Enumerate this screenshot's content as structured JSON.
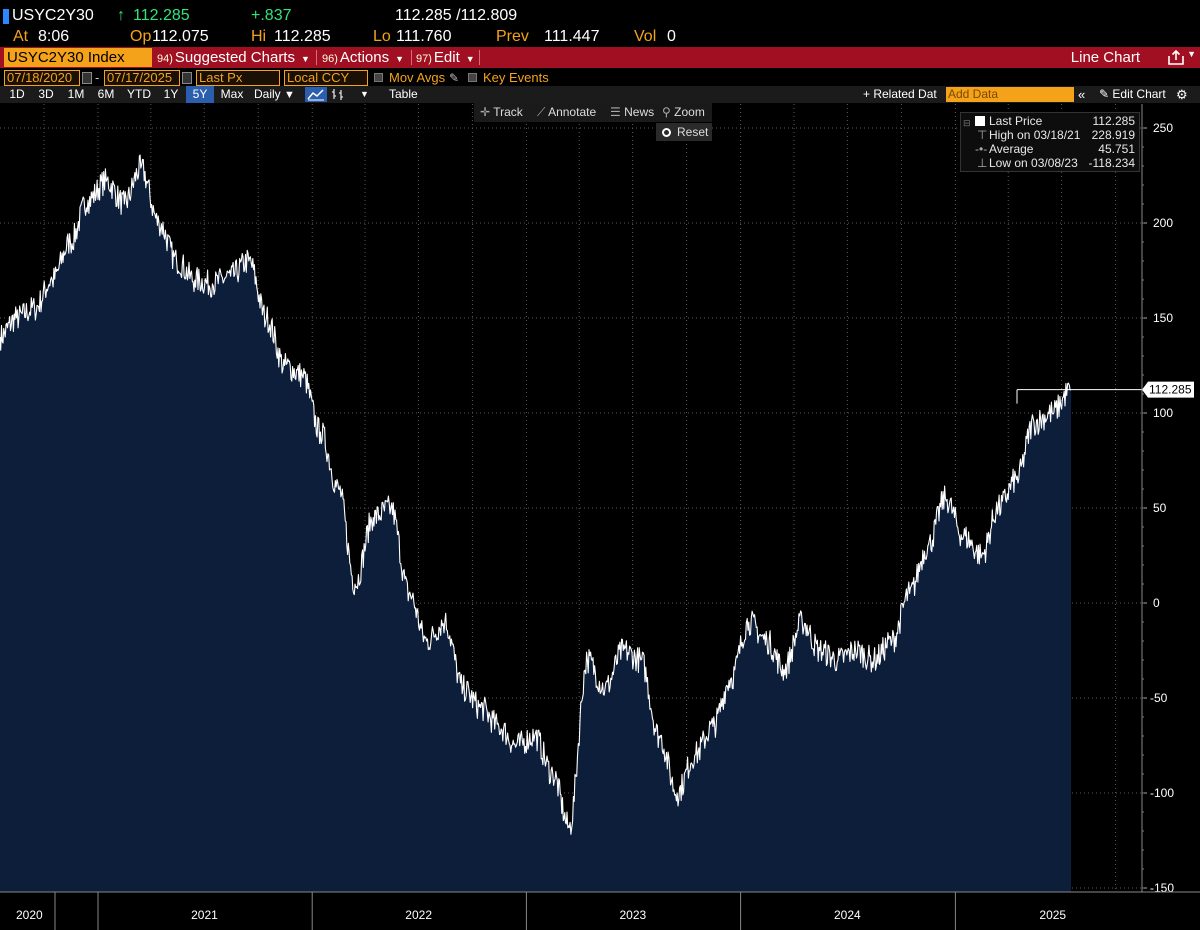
{
  "quote": {
    "ticker": "USYC2Y30",
    "arrow": "↑",
    "last": "112.285",
    "change": "+.837",
    "bid_ask": "112.285 /112.809",
    "at_label": "At",
    "at_time": "8:06",
    "op_label": "Op",
    "op_value": "112.075",
    "hi_label": "Hi",
    "hi_value": "112.285",
    "lo_label": "Lo",
    "lo_value": "111.760",
    "prev_label": "Prev",
    "prev_value": "111.447",
    "vol_label": "Vol",
    "vol_value": "0"
  },
  "menubar": {
    "security": "USYC2Y30 Index",
    "suggested_num": "94)",
    "suggested": "Suggested Charts",
    "actions_num": "96)",
    "actions": "Actions",
    "edit_num": "97)",
    "edit": "Edit",
    "line_chart": "Line Chart"
  },
  "settings": {
    "start_date": "07/18/2020",
    "dash": "-",
    "end_date": "07/17/2025",
    "field": "Last Px",
    "currency": "Local CCY",
    "mov_avgs": "Mov Avgs",
    "key_events": "Key Events"
  },
  "ranges": {
    "buttons": [
      "1D",
      "3D",
      "1M",
      "6M",
      "YTD",
      "1Y",
      "5Y",
      "Max"
    ],
    "active": "5Y",
    "frequency": "Daily",
    "table": "Table",
    "related": "+ Related Dat",
    "add_data_placeholder": "Add Data",
    "edit_chart": "Edit Chart"
  },
  "tools": {
    "track": "Track",
    "annotate": "Annotate",
    "news": "News",
    "zoom": "Zoom",
    "reset": "Reset"
  },
  "legend": {
    "last_label": "Last Price",
    "last_value": "112.285",
    "high_label": "High on 03/18/21",
    "high_value": "228.919",
    "avg_label": "Average",
    "avg_value": "45.751",
    "low_label": "Low on 03/08/23",
    "low_value": "-118.234"
  },
  "colors": {
    "area_fill": "#0c1e3a",
    "line": "#ffffff",
    "amber": "#f5a21b",
    "menu_red": "#a00f22",
    "up_green": "#2ee57a"
  },
  "chart_data": {
    "type": "area",
    "y_ticks": [
      250,
      200,
      150,
      100,
      50,
      0,
      -50,
      -100,
      -150
    ],
    "ylim": [
      -150,
      250
    ],
    "x_tick_labels": [
      "2020",
      "2021",
      "2022",
      "2023",
      "2024",
      "2025"
    ],
    "last_value_label": "112.285",
    "grid": true,
    "series": [
      {
        "values_by_month": [
          {
            "x": "2020-07",
            "y": 140
          },
          {
            "x": "2020-08",
            "y": 150
          },
          {
            "x": "2020-09",
            "y": 155
          },
          {
            "x": "2020-10",
            "y": 170
          },
          {
            "x": "2020-11",
            "y": 190
          },
          {
            "x": "2020-12",
            "y": 212
          },
          {
            "x": "2021-01",
            "y": 222
          },
          {
            "x": "2021-02",
            "y": 210
          },
          {
            "x": "2021-03",
            "y": 228.919
          },
          {
            "x": "2021-04",
            "y": 200
          },
          {
            "x": "2021-05",
            "y": 180
          },
          {
            "x": "2021-06",
            "y": 170
          },
          {
            "x": "2021-07",
            "y": 168
          },
          {
            "x": "2021-08",
            "y": 172
          },
          {
            "x": "2021-09",
            "y": 180
          },
          {
            "x": "2021-10",
            "y": 150
          },
          {
            "x": "2021-11",
            "y": 125
          },
          {
            "x": "2021-12",
            "y": 120
          },
          {
            "x": "2022-01",
            "y": 90
          },
          {
            "x": "2022-02",
            "y": 60
          },
          {
            "x": "2022-03",
            "y": 10
          },
          {
            "x": "2022-04",
            "y": 45
          },
          {
            "x": "2022-05",
            "y": 50
          },
          {
            "x": "2022-06",
            "y": 5
          },
          {
            "x": "2022-07",
            "y": -20
          },
          {
            "x": "2022-08",
            "y": -10
          },
          {
            "x": "2022-09",
            "y": -45
          },
          {
            "x": "2022-10",
            "y": -55
          },
          {
            "x": "2022-11",
            "y": -65
          },
          {
            "x": "2022-12",
            "y": -75
          },
          {
            "x": "2023-01",
            "y": -70
          },
          {
            "x": "2023-02",
            "y": -90
          },
          {
            "x": "2023-03",
            "y": -118.234
          },
          {
            "x": "2023-04",
            "y": -30
          },
          {
            "x": "2023-05",
            "y": -45
          },
          {
            "x": "2023-06",
            "y": -25
          },
          {
            "x": "2023-07",
            "y": -30
          },
          {
            "x": "2023-08",
            "y": -70
          },
          {
            "x": "2023-09",
            "y": -100
          },
          {
            "x": "2023-10",
            "y": -80
          },
          {
            "x": "2023-11",
            "y": -65
          },
          {
            "x": "2023-12",
            "y": -40
          },
          {
            "x": "2024-01",
            "y": -10
          },
          {
            "x": "2024-02",
            "y": -20
          },
          {
            "x": "2024-03",
            "y": -35
          },
          {
            "x": "2024-04",
            "y": -10
          },
          {
            "x": "2024-05",
            "y": -25
          },
          {
            "x": "2024-06",
            "y": -30
          },
          {
            "x": "2024-07",
            "y": -25
          },
          {
            "x": "2024-08",
            "y": -30
          },
          {
            "x": "2024-09",
            "y": -20
          },
          {
            "x": "2024-10",
            "y": 5
          },
          {
            "x": "2024-11",
            "y": 30
          },
          {
            "x": "2024-12",
            "y": 55
          },
          {
            "x": "2025-01",
            "y": 35
          },
          {
            "x": "2025-02",
            "y": 25
          },
          {
            "x": "2025-03",
            "y": 50
          },
          {
            "x": "2025-04",
            "y": 65
          },
          {
            "x": "2025-05",
            "y": 95
          },
          {
            "x": "2025-06",
            "y": 100
          },
          {
            "x": "2025-07",
            "y": 112.285
          }
        ]
      }
    ]
  }
}
